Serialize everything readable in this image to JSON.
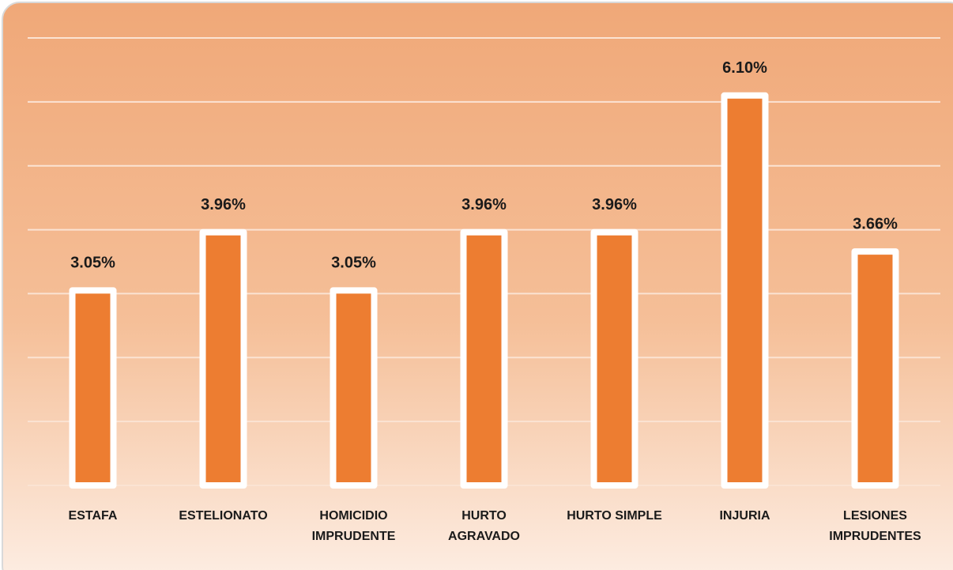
{
  "chart_data": {
    "type": "bar",
    "categories": [
      "ESTAFA",
      "ESTELIONATO",
      "HOMICIDIO IMPRUDENTE",
      "HURTO AGRAVADO",
      "HURTO SIMPLE",
      "INJURIA",
      "LESIONES IMPRUDENTES"
    ],
    "values": [
      3.05,
      3.96,
      3.05,
      3.96,
      3.96,
      6.1,
      3.66
    ],
    "value_labels": [
      "3.05%",
      "3.96%",
      "3.05%",
      "3.96%",
      "3.96%",
      "6.10%",
      "3.66%"
    ],
    "color": "#ed7d31",
    "ylim": [
      0,
      7
    ],
    "yticks": [
      0,
      1,
      2,
      3,
      4,
      5,
      6,
      7
    ],
    "grid": true
  }
}
